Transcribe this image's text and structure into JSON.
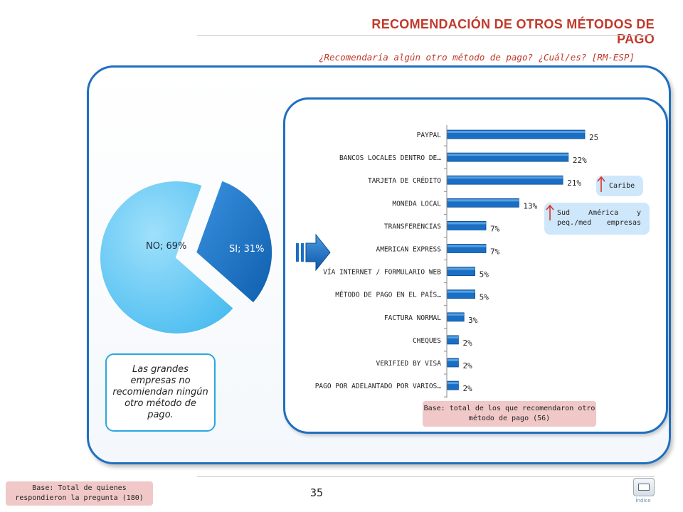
{
  "header": {
    "title": "RECOMENDACIÓN DE OTROS MÉTODOS DE PAGO",
    "subtitle": "¿Recomendaría algún otro método de pago? ¿Cuál/es? [RM-ESP]"
  },
  "pie": {
    "no_label": "NO; 69%",
    "si_label": "SI; 31%",
    "colors": {
      "no": "#5bc8f5",
      "si": "#1a76c9"
    }
  },
  "note": "Las grandes empresas no recomiendan ningún otro método de pago.",
  "chart_data": [
    {
      "type": "pie",
      "categories": [
        "NO",
        "SI"
      ],
      "values": [
        69,
        31
      ],
      "labels": [
        "NO; 69%",
        "SI; 31%"
      ],
      "exploded": "SI"
    },
    {
      "type": "bar",
      "orientation": "horizontal",
      "categories": [
        "PAYPAL",
        "BANCOS LOCALES DENTRO DE…",
        "TARJETA DE CRÉDITO",
        "MONEDA LOCAL",
        "TRANSFERENCIAS",
        "AMERICAN EXPRESS",
        "VÍA INTERNET / FORMULARIO WEB",
        "MÉTODO DE PAGO EN EL PAÍS…",
        "FACTURA NORMAL",
        "CHEQUES",
        "VERIFIED BY VISA",
        "PAGO POR ADELANTADO POR VARIOS…"
      ],
      "values": [
        25,
        22,
        21,
        13,
        7,
        7,
        5,
        5,
        3,
        2,
        2,
        2
      ],
      "value_labels": [
        "25%",
        "22%",
        "21%",
        "13%",
        "7%",
        "7%",
        "5%",
        "5%",
        "3%",
        "2%",
        "2%",
        "2%"
      ],
      "xlim": [
        0,
        25
      ],
      "bar_color": "#1a6fc4",
      "grid": false
    }
  ],
  "callouts": {
    "caribe": "Caribe",
    "sud": "Sud América y peq./med empresas",
    "arrow_color": "#d9322b"
  },
  "base_inner": "Base: total de los que recomendaron otro método de pago (56)",
  "base_bottom": "Base: Total de quienes respondieron la pregunta (180)",
  "page_number": "35",
  "index_label": "Índice"
}
